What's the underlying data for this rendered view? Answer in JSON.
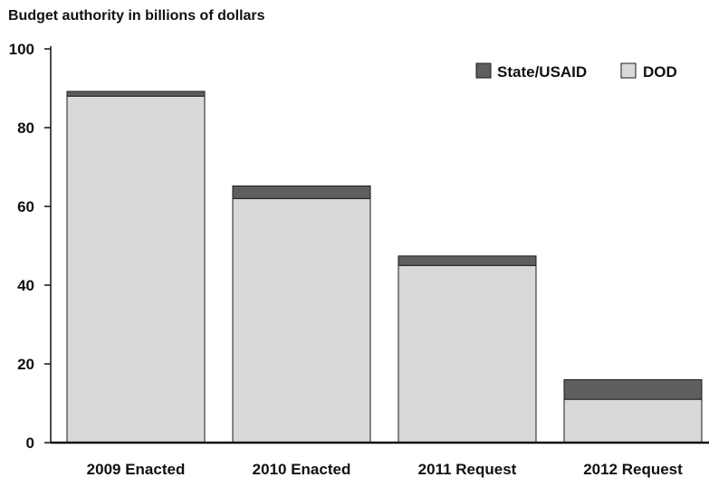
{
  "chart_data": {
    "type": "bar",
    "stacked": true,
    "title": "Budget authority in billions of dollars",
    "xlabel": "",
    "ylabel": "",
    "categories": [
      "2009 Enacted",
      "2010 Enacted",
      "2011 Request",
      "2012 Request"
    ],
    "series": [
      {
        "name": "DOD",
        "values": [
          88,
          62,
          45,
          11
        ],
        "color": "#d9d9d9"
      },
      {
        "name": "State/USAID",
        "values": [
          1.2,
          3.2,
          2.4,
          5
        ],
        "color": "#5f5f5f"
      }
    ],
    "ylim": [
      0,
      100
    ],
    "yticks": [
      0,
      20,
      40,
      60,
      80,
      100
    ],
    "grid": false,
    "legend": {
      "placement": "top-right",
      "order": [
        "State/USAID",
        "DOD"
      ]
    }
  }
}
